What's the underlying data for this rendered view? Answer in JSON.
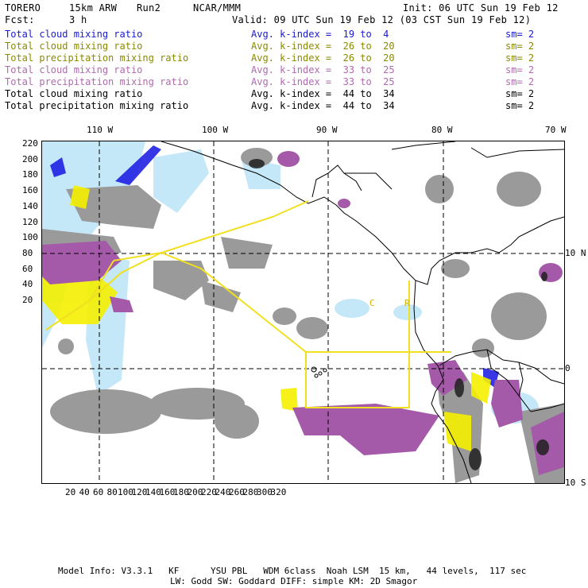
{
  "header": {
    "model": "TORERO",
    "resolution": "15km ARW",
    "run": "Run2",
    "org": "NCAR/MMM",
    "init": "Init: 06 UTC Sun 19 Feb 12",
    "fcst_label": "Fcst:",
    "fcst_value": "3 h",
    "valid": "Valid: 09 UTC Sun 19 Feb 12 (03 CST Sun 19 Feb 12)"
  },
  "legend_rows": [
    {
      "field": "Total cloud mixing ratio",
      "kindex": "Avg. k-index =  19 to  4",
      "sm": "sm= 2",
      "color": "#1a1ad0"
    },
    {
      "field": "Total cloud mixing ratio",
      "kindex": "Avg. k-index =  26 to  20",
      "sm": "sm= 2",
      "color": "#8a8a00"
    },
    {
      "field": "Total precipitation mixing ratio",
      "kindex": "Avg. k-index =  26 to  20",
      "sm": "sm= 2",
      "color": "#8a8a00"
    },
    {
      "field": "Total cloud mixing ratio",
      "kindex": "Avg. k-index =  33 to  25",
      "sm": "sm= 2",
      "color": "#b06ab0"
    },
    {
      "field": "Total precipitation mixing ratio",
      "kindex": "Avg. k-index =  33 to  25",
      "sm": "sm= 2",
      "color": "#b06ab0"
    },
    {
      "field": "Total cloud mixing ratio",
      "kindex": "Avg. k-index =  44 to  34",
      "sm": "sm= 2",
      "color": "#000000"
    },
    {
      "field": "Total precipitation mixing ratio",
      "kindex": "Avg. k-index =  44 to  34",
      "sm": "sm= 2",
      "color": "#000000"
    }
  ],
  "map": {
    "lon_labels": [
      "110 W",
      "100 W",
      "90 W",
      "80 W",
      "70 W"
    ],
    "lat_labels": [
      "10 N",
      "0",
      "10 S"
    ],
    "y_ticks": [
      "220",
      "200",
      "180",
      "160",
      "140",
      "120",
      "100",
      "80",
      "60",
      "40",
      "20"
    ],
    "x_ticks": [
      "20",
      "40",
      "60",
      "80",
      "100",
      "120",
      "140",
      "160",
      "180",
      "200",
      "220",
      "240",
      "260",
      "280",
      "300",
      "320"
    ],
    "map_text": [
      "C",
      "R"
    ],
    "colors": {
      "gray": "#9a9a9a",
      "purple": "#a45aa8",
      "yellow": "#f4f000",
      "blue": "#1414e0",
      "lightblue": "#bfe6f8",
      "domain_line": "#f0e020"
    }
  },
  "footer": {
    "line1": "Model Info: V3.3.1   KF      YSU PBL   WDM 6class  Noah LSM  15 km,   44 levels,  117 sec",
    "line2": "LW: Godd SW: Goddard DIFF: simple KM: 2D Smagor"
  }
}
